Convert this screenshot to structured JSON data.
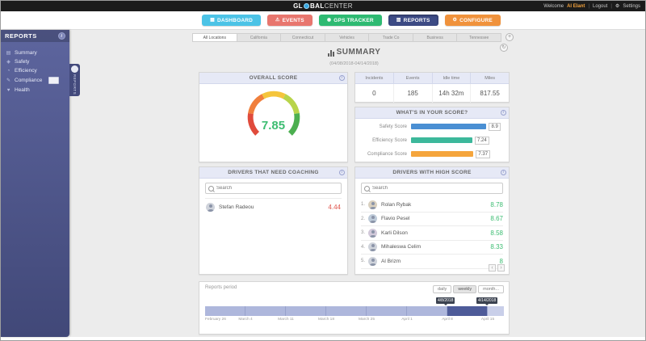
{
  "icons": {
    "info": "i",
    "refresh": "↻"
  },
  "topbar": {
    "logo_gl": "GL",
    "logo_rest": "BAL",
    "logo_light": "CENTER",
    "welcome": "Welcome",
    "username": "Al Elant",
    "logout": "Logout",
    "settings_icon": "⚙",
    "settings_label": "Settings"
  },
  "nav": {
    "items": [
      {
        "label": "DASHBOARD",
        "icon": "▦",
        "color": "#4cc3e6"
      },
      {
        "label": "EVENTS",
        "icon": "⚠",
        "color": "#e8766e"
      },
      {
        "label": "GPS TRACKER",
        "icon": "◉",
        "color": "#2eba72"
      },
      {
        "label": "REPORTS",
        "icon": "▥",
        "color": "#3d4b85"
      },
      {
        "label": "CONFIGURE",
        "icon": "⚙",
        "color": "#f0923c"
      }
    ]
  },
  "sidebar": {
    "title": "REPORTS",
    "flyout_label": "REPORTS",
    "items": [
      {
        "icon": "▤",
        "label": "Summary"
      },
      {
        "icon": "◈",
        "label": "Safety"
      },
      {
        "icon": "◔",
        "label": "Efficiency"
      },
      {
        "icon": "✎",
        "label": "Compliance"
      },
      {
        "icon": "♥",
        "label": "Health"
      }
    ]
  },
  "content": {
    "tabs": [
      {
        "label": "All Locations"
      },
      {
        "label": "California"
      },
      {
        "label": "Connecticut"
      },
      {
        "label": "Vehicles"
      },
      {
        "label": "Trade Co"
      },
      {
        "label": "Business"
      },
      {
        "label": "Tennessee"
      }
    ],
    "add_tab": "+",
    "title": "SUMMARY",
    "subtitle": "(04/08/2018-04/14/2018)",
    "overall": {
      "header": "OVERALL SCORE",
      "value": "7.85",
      "value_color": "#3dbd72"
    },
    "stats": {
      "columns": [
        {
          "label": "Incidents",
          "value": "0"
        },
        {
          "label": "Events",
          "value": "185"
        },
        {
          "label": "Idle time",
          "value": "14h 32m"
        },
        {
          "label": "Miles",
          "value": "817.55"
        }
      ]
    },
    "breakdown": {
      "header": "WHAT'S IN YOUR SCORE?",
      "bars": [
        {
          "label": "Safety Score",
          "value": 8.9,
          "display": "8.9",
          "color": "#4a8fd3"
        },
        {
          "label": "Efficiency Score",
          "value": 7.24,
          "display": "7.24",
          "color": "#3cb89b"
        },
        {
          "label": "Compliance Score",
          "value": 7.37,
          "display": "7.37",
          "color": "#f5a53c"
        }
      ]
    },
    "coaching": {
      "header": "DRIVERS THAT NEED COACHING",
      "search_placeholder": "Search",
      "score_color": "#e0564e",
      "drivers": [
        {
          "name": "Stefan Radeou",
          "score": "4.44"
        }
      ]
    },
    "highscore": {
      "header": "DRIVERS WITH HIGH SCORE",
      "search_placeholder": "Search",
      "score_color": "#3dbd72",
      "pagination_prev": "‹",
      "pagination_next": "›",
      "drivers": [
        {
          "rank": "1.",
          "name": "Rolan Rybak",
          "score": "8.78"
        },
        {
          "rank": "2.",
          "name": "Flavio Pesel",
          "score": "8.67"
        },
        {
          "rank": "3.",
          "name": "Karli Dilson",
          "score": "8.58"
        },
        {
          "rank": "4.",
          "name": "Mihaleswa Celim",
          "score": "8.33"
        },
        {
          "rank": "5.",
          "name": "Al Brizm",
          "score": "8"
        }
      ]
    },
    "period": {
      "label": "Reports period",
      "buttons": [
        {
          "label": "daily"
        },
        {
          "label": "weekly"
        },
        {
          "label": "month..."
        }
      ],
      "tooltip_start": "4/8/2018",
      "tooltip_end": "4/14/2018",
      "weeks": [
        "February 26",
        "March 4",
        "March 11",
        "March 18",
        "March 25",
        "April 1",
        "April 8",
        "April 15"
      ]
    }
  }
}
